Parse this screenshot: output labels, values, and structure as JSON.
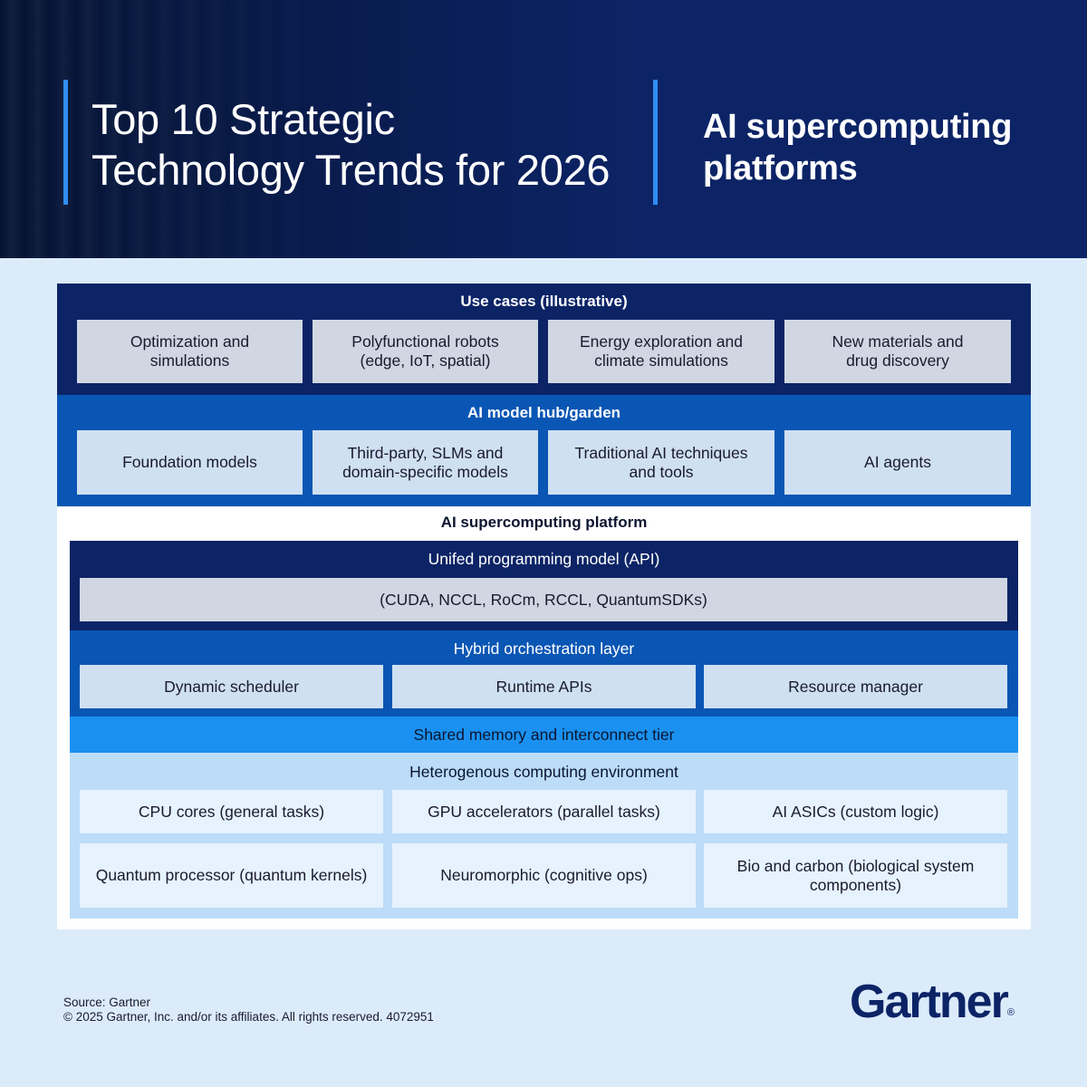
{
  "header": {
    "title_lines": [
      "Top 10 Strategic",
      "Technology Trends for 2026"
    ],
    "trend_lines": [
      "AI supercomputing",
      "platforms"
    ]
  },
  "use_cases": {
    "title": "Use cases (illustrative)",
    "items": [
      [
        "Optimization and",
        "simulations"
      ],
      [
        "Polyfunctional robots",
        "(edge, IoT, spatial)"
      ],
      [
        "Energy exploration and",
        "climate simulations"
      ],
      [
        "New materials and",
        "drug discovery"
      ]
    ]
  },
  "model_hub": {
    "title": "AI model hub/garden",
    "items": [
      [
        "Foundation models"
      ],
      [
        "Third-party, SLMs and",
        "domain-specific models"
      ],
      [
        "Traditional AI techniques",
        "and tools"
      ],
      [
        "AI agents"
      ]
    ]
  },
  "platform": {
    "title": "AI supercomputing platform",
    "programming": {
      "title": "Unifed programming model (API)",
      "item": "(CUDA, NCCL, RoCm, RCCL, QuantumSDKs)"
    },
    "orchestration": {
      "title": "Hybrid orchestration layer",
      "items": [
        "Dynamic scheduler",
        "Runtime APIs",
        "Resource manager"
      ]
    },
    "memory": {
      "title": "Shared memory and interconnect tier"
    },
    "computing": {
      "title": "Heterogenous computing environment",
      "items": [
        [
          "CPU cores (general tasks)"
        ],
        [
          "GPU accelerators (parallel tasks)"
        ],
        [
          "AI ASICs (custom logic)"
        ],
        [
          "Quantum processor (quantum kernels)"
        ],
        [
          "Neuromorphic (cognitive ops)"
        ],
        [
          "Bio and carbon (biological system",
          "components)"
        ]
      ]
    }
  },
  "footer": {
    "source": "Source: Gartner",
    "copyright": "© 2025 Gartner, Inc. and/or its affiliates. All rights reserved. 4072951",
    "logo": "Gartner",
    "logo_mark": "®"
  },
  "colors": {
    "navy": "#0c2466",
    "blue": "#0a56b4",
    "bright_blue": "#1a91f0",
    "light_blue": "#bcdcf8",
    "card_grey": "#d0d6e2",
    "card_light": "#cfe0f2",
    "accent": "#2f8ef2"
  }
}
